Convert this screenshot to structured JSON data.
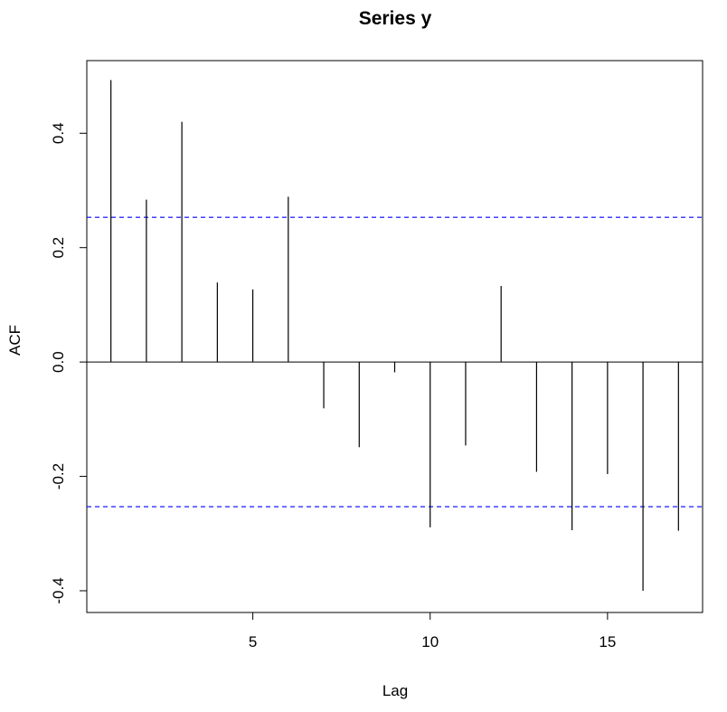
{
  "chart_data": {
    "type": "bar",
    "title": "Series y",
    "xlabel": "Lag",
    "ylabel": "ACF",
    "x": [
      1,
      2,
      3,
      4,
      5,
      6,
      7,
      8,
      9,
      10,
      11,
      12,
      13,
      14,
      15,
      16,
      17
    ],
    "values": [
      0.493,
      0.284,
      0.42,
      0.139,
      0.127,
      0.289,
      -0.081,
      -0.149,
      -0.018,
      -0.289,
      -0.146,
      0.133,
      -0.192,
      -0.294,
      -0.196,
      -0.4,
      -0.295
    ],
    "xlim": [
      0.32,
      17.68
    ],
    "ylim": [
      -0.438,
      0.527
    ],
    "xticks": [
      5,
      10,
      15
    ],
    "xtick_labels": [
      "5",
      "10",
      "15"
    ],
    "yticks": [
      -0.4,
      -0.2,
      0.0,
      0.2,
      0.4
    ],
    "ytick_labels": [
      "-0.4",
      "-0.2",
      "0.0",
      "0.2",
      "0.4"
    ],
    "confidence_bounds": [
      0.253,
      -0.253
    ],
    "grid": false,
    "colors": {
      "bars": "#000000",
      "zero_line": "#000000",
      "confidence": "#0000ff",
      "frame": "#000000"
    }
  }
}
